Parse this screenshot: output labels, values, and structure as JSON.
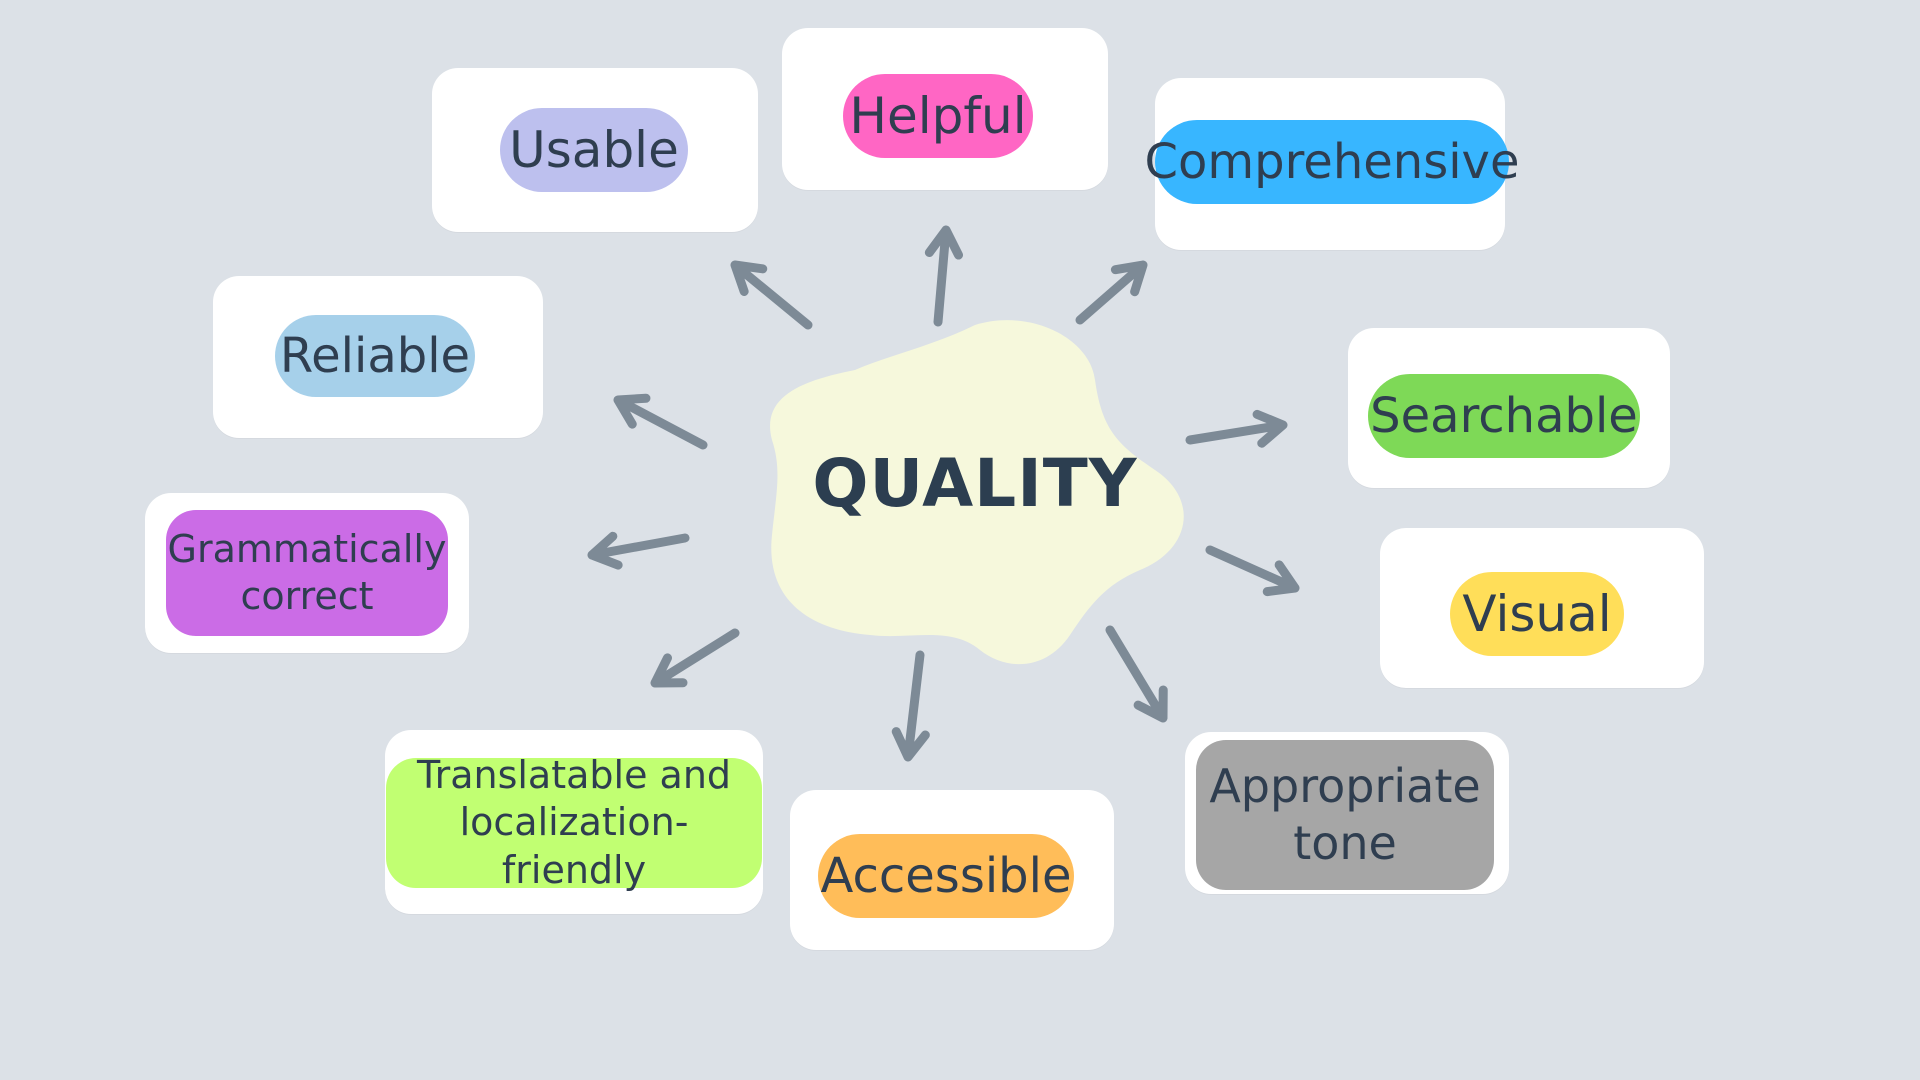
{
  "center": {
    "label": "QUALITY",
    "color": "#f6f8dc"
  },
  "nodes": [
    {
      "id": "usable",
      "label": "Usable",
      "color": "#bdc0ee"
    },
    {
      "id": "helpful",
      "label": "Helpful",
      "color": "#ff66c4"
    },
    {
      "id": "comprehensive",
      "label": "Comprehensive",
      "color": "#38b6ff"
    },
    {
      "id": "reliable",
      "label": "Reliable",
      "color": "#a6d0ea"
    },
    {
      "id": "searchable",
      "label": "Searchable",
      "color": "#7ed957"
    },
    {
      "id": "grammatically-correct",
      "label": "Grammatically correct",
      "color": "#cb6ce6"
    },
    {
      "id": "visual",
      "label": "Visual",
      "color": "#ffde59"
    },
    {
      "id": "translatable",
      "label": "Translatable and localization-friendly",
      "color": "#c1ff72"
    },
    {
      "id": "accessible",
      "label": "Accessible",
      "color": "#ffbd59"
    },
    {
      "id": "appropriate-tone",
      "label": "Appropriate tone",
      "color": "#a6a6a6"
    }
  ],
  "arrow_color": "#7d8a96"
}
